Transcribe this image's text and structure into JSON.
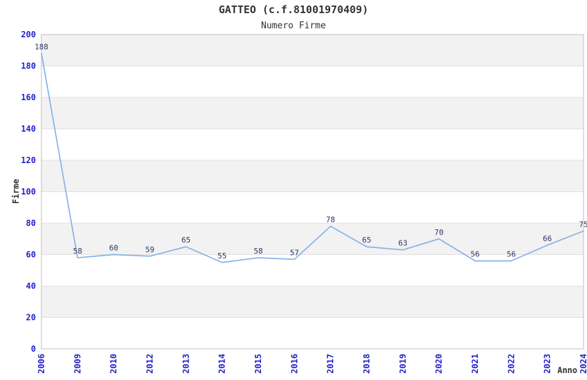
{
  "chart_data": {
    "type": "line",
    "title": "GATTEO (c.f.81001970409)",
    "subtitle": "Numero Firme",
    "xlabel": "Anno",
    "ylabel": "Firme",
    "categories": [
      "2006",
      "2009",
      "2010",
      "2012",
      "2013",
      "2014",
      "2015",
      "2016",
      "2017",
      "2018",
      "2019",
      "2020",
      "2021",
      "2022",
      "2023",
      "2024"
    ],
    "values": [
      188,
      58,
      60,
      59,
      65,
      55,
      58,
      57,
      78,
      65,
      63,
      70,
      56,
      56,
      66,
      75
    ],
    "ylim": [
      0,
      200
    ],
    "ytick_step": 20,
    "ytick_labels": [
      "0",
      "20",
      "40",
      "60",
      "80",
      "100",
      "120",
      "140",
      "160",
      "180",
      "200"
    ],
    "grid": true,
    "legend": "none",
    "layout": {
      "alternating_horizontal_bands": true,
      "x_tick_rotation_deg": -90,
      "data_labels_shown": true
    },
    "colors": {
      "line": "#85b3e6",
      "tick_label": "#2222cc",
      "data_label": "#333366",
      "band_fill": "#f2f2f2",
      "gridline": "#e0e0e0",
      "plot_border": "#bfbfbf",
      "text": "#333333",
      "background": "#ffffff"
    }
  }
}
